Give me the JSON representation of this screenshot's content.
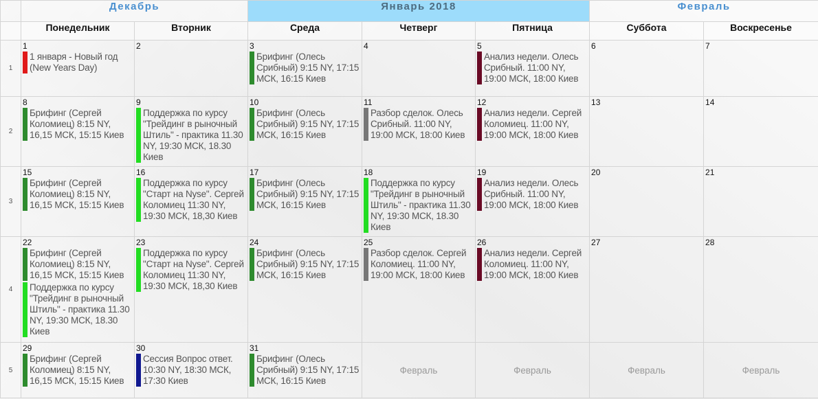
{
  "months": {
    "prev": "Декабрь",
    "current": "Январь 2018",
    "next": "Февраль"
  },
  "days": [
    "Понедельник",
    "Вторник",
    "Среда",
    "Четверг",
    "Пятница",
    "Суббота",
    "Воскресенье"
  ],
  "colors": {
    "green": "#2e8b2e",
    "lime": "#22dd22",
    "red": "#e01a1a",
    "maroon": "#6a0a25",
    "gray": "#777777",
    "navy": "#101890",
    "current_month_bg": "#9ddcfb",
    "month_link": "#4a90d0"
  },
  "weeks": [
    {
      "num": "1",
      "cells": [
        {
          "day": "1",
          "events": [
            {
              "color": "red",
              "text": "1 января - Новый год (New Years Day)"
            }
          ]
        },
        {
          "day": "2",
          "events": []
        },
        {
          "day": "3",
          "events": [
            {
              "color": "green",
              "text": "Брифинг (Олесь Срибный) 9:15 NY, 17:15 МСК, 16:15 Киев"
            }
          ]
        },
        {
          "day": "4",
          "events": []
        },
        {
          "day": "5",
          "events": [
            {
              "color": "maroon",
              "text": "Анализ недели. Олесь Срибный. 11:00 NY, 19:00 МСК, 18:00 Киев"
            }
          ]
        },
        {
          "day": "6",
          "events": []
        },
        {
          "day": "7",
          "events": []
        }
      ]
    },
    {
      "num": "2",
      "cells": [
        {
          "day": "8",
          "events": [
            {
              "color": "green",
              "text": "Брифинг (Сергей Коломиец) 8:15 NY, 16,15 МСК, 15:15 Киев"
            }
          ]
        },
        {
          "day": "9",
          "events": [
            {
              "color": "lime",
              "text": "Поддержка по курсу \"Трейдинг в рыночный Штиль\" - практика 11.30 NY, 19:30 МСК, 18.30 Киев"
            }
          ]
        },
        {
          "day": "10",
          "events": [
            {
              "color": "green",
              "text": "Брифинг (Олесь Срибный) 9:15 NY, 17:15 МСК, 16:15 Киев"
            }
          ]
        },
        {
          "day": "11",
          "events": [
            {
              "color": "gray",
              "text": "Разбор сделок. Олесь Срибный. 11:00 NY, 19:00 МСК, 18:00 Киев"
            }
          ]
        },
        {
          "day": "12",
          "events": [
            {
              "color": "maroon",
              "text": "Анализ недели. Сергей Коломиец. 11:00 NY, 19:00 МСК, 18:00 Киев"
            }
          ]
        },
        {
          "day": "13",
          "events": []
        },
        {
          "day": "14",
          "events": []
        }
      ]
    },
    {
      "num": "3",
      "cells": [
        {
          "day": "15",
          "events": [
            {
              "color": "green",
              "text": "Брифинг (Сергей Коломиец) 8:15 NY, 16,15 МСК, 15:15 Киев"
            }
          ]
        },
        {
          "day": "16",
          "events": [
            {
              "color": "lime",
              "text": "Поддержка по курсу \"Старт на Nyse\". Сергей Коломиец 11:30 NY, 19:30 МСК, 18,30 Киев"
            }
          ]
        },
        {
          "day": "17",
          "events": [
            {
              "color": "green",
              "text": "Брифинг (Олесь Срибный) 9:15 NY, 17:15 МСК, 16:15 Киев"
            }
          ]
        },
        {
          "day": "18",
          "events": [
            {
              "color": "lime",
              "text": "Поддержка по курсу \"Трейдинг в рыночный Штиль\" - практика 11.30 NY, 19:30 МСК, 18.30 Киев"
            }
          ]
        },
        {
          "day": "19",
          "events": [
            {
              "color": "maroon",
              "text": "Анализ недели. Олесь Срибный. 11:00 NY, 19:00 МСК, 18:00 Киев"
            }
          ]
        },
        {
          "day": "20",
          "events": []
        },
        {
          "day": "21",
          "events": []
        }
      ]
    },
    {
      "num": "4",
      "cells": [
        {
          "day": "22",
          "events": [
            {
              "color": "green",
              "text": "Брифинг (Сергей Коломиец) 8:15 NY, 16,15 МСК, 15:15 Киев"
            },
            {
              "color": "lime",
              "text": "Поддержка по курсу \"Трейдинг в рыночный Штиль\" - практика 11.30 NY, 19:30 МСК, 18.30 Киев"
            }
          ]
        },
        {
          "day": "23",
          "events": [
            {
              "color": "lime",
              "text": "Поддержка по курсу \"Старт на Nyse\". Сергей Коломиец 11:30 NY, 19:30 МСК, 18,30 Киев"
            }
          ]
        },
        {
          "day": "24",
          "events": [
            {
              "color": "green",
              "text": "Брифинг (Олесь Срибный) 9:15 NY, 17:15 МСК, 16:15 Киев"
            }
          ]
        },
        {
          "day": "25",
          "events": [
            {
              "color": "gray",
              "text": "Разбор сделок. Сергей Коломиец. 11:00 NY, 19:00 МСК, 18:00 Киев"
            }
          ]
        },
        {
          "day": "26",
          "events": [
            {
              "color": "maroon",
              "text": "Анализ недели. Сергей Коломиец. 11:00 NY, 19:00 МСК, 18:00 Киев"
            }
          ]
        },
        {
          "day": "27",
          "events": []
        },
        {
          "day": "28",
          "events": []
        }
      ]
    },
    {
      "num": "5",
      "cells": [
        {
          "day": "29",
          "events": [
            {
              "color": "green",
              "text": "Брифинг (Сергей Коломиец) 8:15 NY, 16,15 МСК, 15:15 Киев"
            }
          ]
        },
        {
          "day": "30",
          "events": [
            {
              "color": "navy",
              "text": "Сессия Вопрос ответ. 10:30 NY, 18:30 МСК, 17:30 Киев"
            }
          ]
        },
        {
          "day": "31",
          "events": [
            {
              "color": "green",
              "text": "Брифинг (Олесь Срибный) 9:15 NY, 17:15 МСК, 16:15 Киев"
            }
          ]
        },
        {
          "next_month": "Февраль"
        },
        {
          "next_month": "Февраль"
        },
        {
          "next_month": "Февраль"
        },
        {
          "next_month": "Февраль"
        }
      ]
    }
  ]
}
